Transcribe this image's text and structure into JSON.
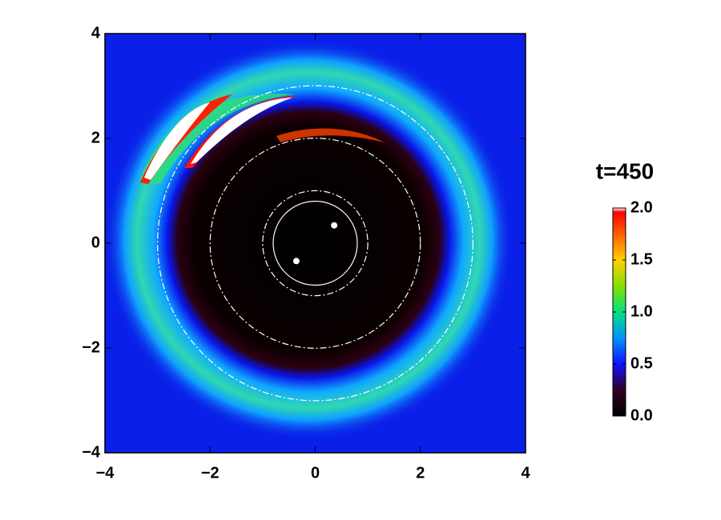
{
  "chart_data": {
    "type": "scatter",
    "title": "t=450",
    "xlim": [
      -4,
      4
    ],
    "ylim": [
      -4,
      4
    ],
    "xticks": [
      {
        "value": -4,
        "label": "−4"
      },
      {
        "value": -2,
        "label": "−2"
      },
      0,
      2,
      4
    ],
    "yticks": [
      {
        "value": -4,
        "label": "−4"
      },
      {
        "value": -2,
        "label": "−2"
      },
      0,
      2,
      4
    ],
    "series": [
      {
        "color": "#ffffff",
        "x": [
          -0.36,
          0.36
        ],
        "values": [
          -0.34,
          0.34
        ]
      }
    ],
    "circles": [
      {
        "radius": 0.8,
        "style": "solid"
      },
      {
        "radius": 1,
        "style": "dash-dot"
      },
      {
        "radius": 2,
        "style": "dash-dot"
      },
      {
        "radius": 3,
        "style": "dash-dot"
      }
    ],
    "colorbar": {
      "lim": [
        0,
        2
      ],
      "ticks": [
        {
          "value": 0,
          "label": "0.0"
        },
        {
          "value": 0.5,
          "label": "0.5"
        },
        {
          "value": 1,
          "label": "1.0"
        },
        {
          "value": 1.5,
          "label": "1.5"
        },
        {
          "value": 2,
          "label": "2.0"
        }
      ]
    }
  }
}
